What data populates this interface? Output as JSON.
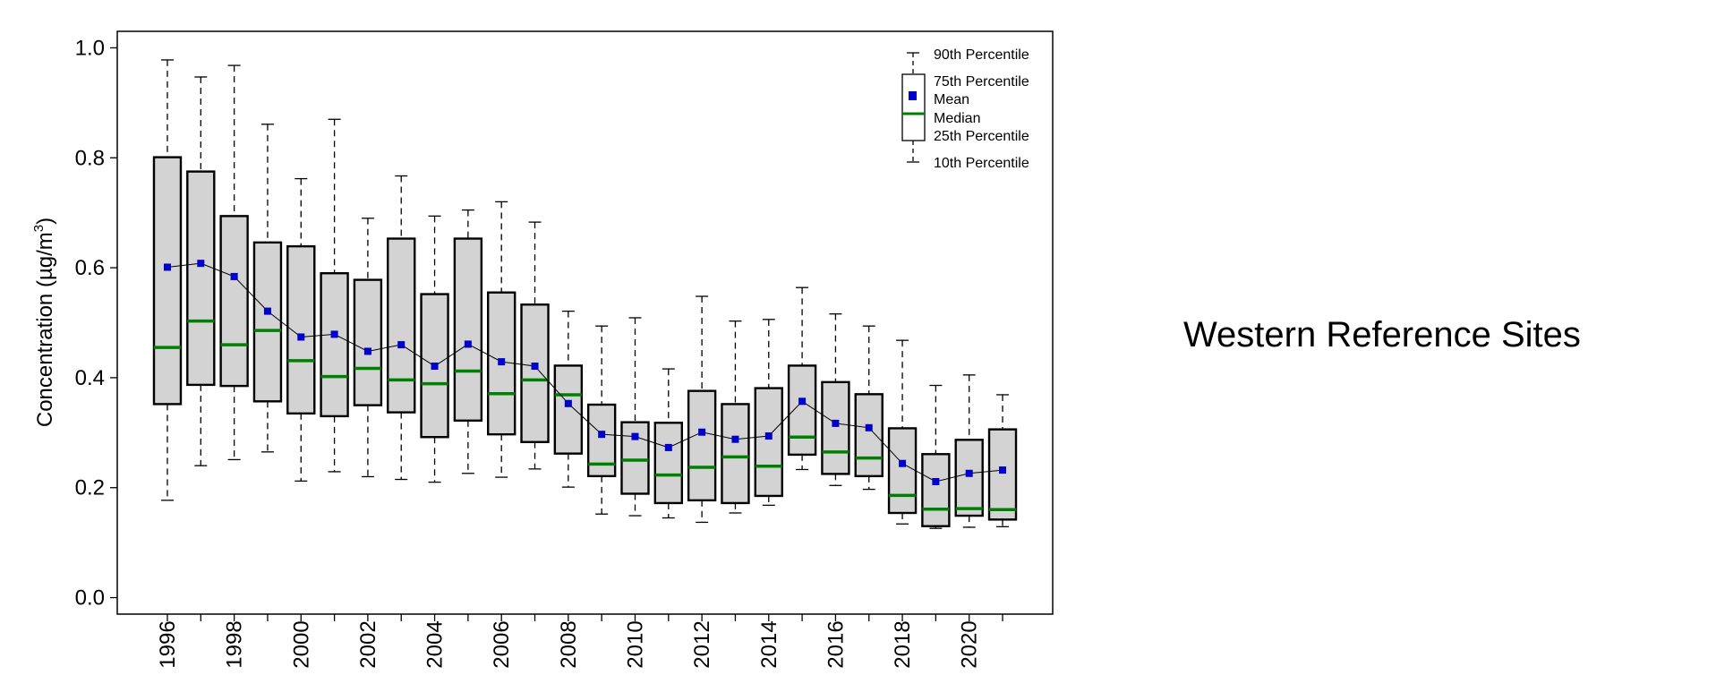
{
  "side_title": "Western Reference Sites",
  "chart_data": {
    "type": "boxplot",
    "ylabel_main": "Concentration (",
    "ylabel_unit": "µg/m",
    "ylabel_sup": "3",
    "ylabel_close": ")",
    "ylim": [
      -0.03,
      1.03
    ],
    "yticks": [
      0.0,
      0.2,
      0.4,
      0.6,
      0.8,
      1.0
    ],
    "ytick_labels": [
      "0.0",
      "0.2",
      "0.4",
      "0.6",
      "0.8",
      "1.0"
    ],
    "xlim": [
      1994.5,
      2022.5
    ],
    "xtick_years": [
      1996,
      1998,
      2000,
      2002,
      2004,
      2006,
      2008,
      2010,
      2012,
      2014,
      2016,
      2018,
      2020
    ],
    "xtick_labels": [
      "1996",
      "1998",
      "2000",
      "2002",
      "2004",
      "2006",
      "2008",
      "2010",
      "2012",
      "2014",
      "2016",
      "2018",
      "2020"
    ],
    "years": [
      1996,
      1997,
      1998,
      1999,
      2000,
      2001,
      2002,
      2003,
      2004,
      2005,
      2006,
      2007,
      2008,
      2009,
      2010,
      2011,
      2012,
      2013,
      2014,
      2015,
      2016,
      2017,
      2018,
      2019,
      2020,
      2021
    ],
    "p10": [
      0.177,
      0.24,
      0.251,
      0.265,
      0.212,
      0.229,
      0.22,
      0.215,
      0.21,
      0.226,
      0.219,
      0.234,
      0.201,
      0.152,
      0.149,
      0.145,
      0.137,
      0.154,
      0.168,
      0.233,
      0.204,
      0.197,
      0.134,
      0.126,
      0.128,
      0.129
    ],
    "p25": [
      0.352,
      0.387,
      0.385,
      0.357,
      0.335,
      0.33,
      0.35,
      0.337,
      0.292,
      0.322,
      0.297,
      0.283,
      0.262,
      0.221,
      0.189,
      0.172,
      0.177,
      0.172,
      0.185,
      0.26,
      0.225,
      0.221,
      0.154,
      0.13,
      0.149,
      0.142
    ],
    "median": [
      0.455,
      0.503,
      0.46,
      0.486,
      0.431,
      0.402,
      0.417,
      0.396,
      0.389,
      0.412,
      0.371,
      0.396,
      0.369,
      0.243,
      0.25,
      0.223,
      0.237,
      0.256,
      0.239,
      0.292,
      0.265,
      0.254,
      0.186,
      0.161,
      0.162,
      0.16
    ],
    "p75": [
      0.801,
      0.775,
      0.694,
      0.646,
      0.639,
      0.59,
      0.578,
      0.653,
      0.552,
      0.653,
      0.555,
      0.533,
      0.422,
      0.351,
      0.319,
      0.318,
      0.376,
      0.352,
      0.381,
      0.422,
      0.392,
      0.37,
      0.308,
      0.261,
      0.287,
      0.306
    ],
    "p90": [
      0.978,
      0.947,
      0.968,
      0.861,
      0.762,
      0.87,
      0.69,
      0.767,
      0.694,
      0.705,
      0.72,
      0.683,
      0.521,
      0.494,
      0.509,
      0.416,
      0.548,
      0.503,
      0.506,
      0.564,
      0.516,
      0.494,
      0.468,
      0.386,
      0.405,
      0.369
    ],
    "mean": [
      0.601,
      0.608,
      0.584,
      0.521,
      0.474,
      0.479,
      0.448,
      0.46,
      0.421,
      0.461,
      0.429,
      0.421,
      0.353,
      0.297,
      0.293,
      0.273,
      0.301,
      0.288,
      0.294,
      0.357,
      0.317,
      0.309,
      0.244,
      0.211,
      0.226,
      0.232
    ],
    "legend": {
      "p90": "90th Percentile",
      "p75": "75th Percentile",
      "mean": "Mean",
      "median": "Median",
      "p25": "25th Percentile",
      "p10": "10th Percentile"
    },
    "colors": {
      "box_fill": "#d3d3d3",
      "median": "#008000",
      "mean": "#0000cc",
      "line": "#000000"
    }
  }
}
